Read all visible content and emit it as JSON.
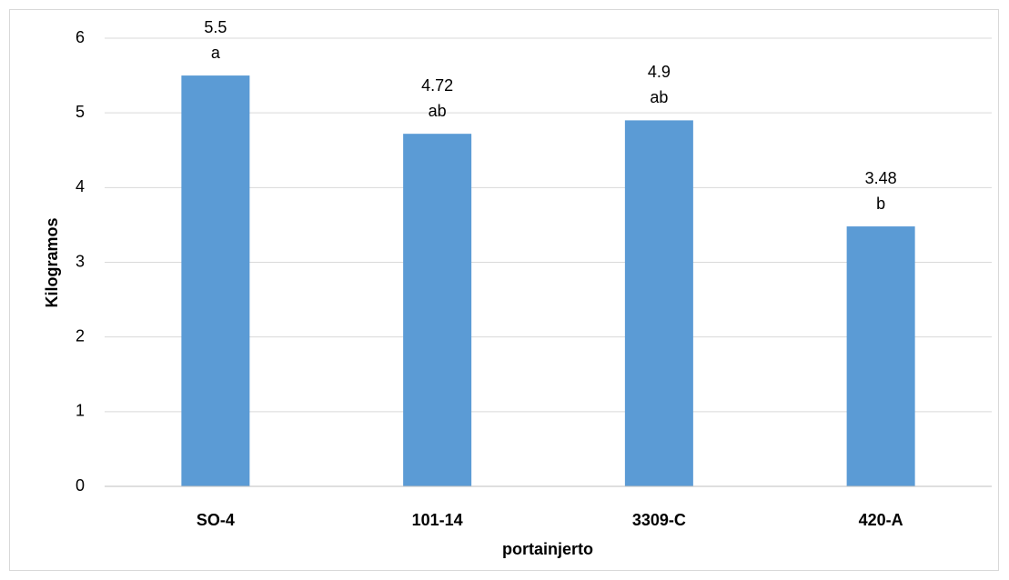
{
  "chart_data": {
    "type": "bar",
    "x_label": "portainjerto",
    "y_label": "Kilogramos",
    "categories": [
      "SO-4",
      "101-14",
      "3309-C",
      "420-A"
    ],
    "values": [
      5.5,
      4.72,
      4.9,
      3.48
    ],
    "group_letters": [
      "a",
      "ab",
      "ab",
      "b"
    ],
    "color": "#5b9bd5",
    "ylim": [
      0,
      6
    ],
    "yticks": [
      0,
      1,
      2,
      3,
      4,
      5,
      6
    ],
    "grid": true
  }
}
